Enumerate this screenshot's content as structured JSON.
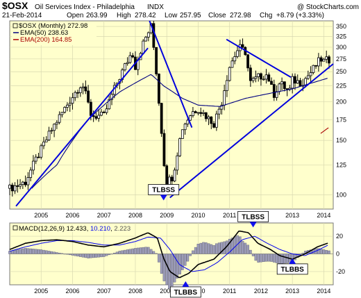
{
  "header": {
    "symbol": "$OSX",
    "name": "Oil Services Index - Philadelphia",
    "exchange": "INDX",
    "watermark": "@ StockCharts.com",
    "date": "21-Feb-2014",
    "open_label": "Open",
    "open": "263.99",
    "high_label": "High",
    "high": "278.42",
    "low_label": "Low",
    "low": "257.95",
    "close_label": "Close",
    "close": "272.98",
    "chg_label": "Chg",
    "chg": "+8.79 (+3.33%)"
  },
  "legend": {
    "price": "$OSX (Monthly) 272.98",
    "ema50": "EMA(50) 238.63",
    "ema200": "EMA(200) 164.85"
  },
  "macd_legend": {
    "label": "MACD(12,26,9) 12.433, 10.210, 2.223",
    "parts": [
      "MACD(12,26,9) 12.433",
      ", ",
      "10.210",
      ", ",
      "2.223"
    ]
  },
  "annotations": [
    {
      "text": "TLBSS",
      "x": 2008.9,
      "y": 96,
      "pointer": "down",
      "panel": "price"
    },
    {
      "text": "TLBSS",
      "x": 2011.75,
      "y": 30,
      "pointer": "down",
      "panel": "macd"
    },
    {
      "text": "TLBBS",
      "x": 2009.6,
      "y": -31,
      "pointer": "up",
      "panel": "macd"
    },
    {
      "text": "TLBBS",
      "x": 2013.0,
      "y": -5,
      "pointer": "up",
      "panel": "macd"
    }
  ],
  "colors": {
    "background": "#ffffcc",
    "grid": "#d8d8b0",
    "trendline": "#0000dd",
    "ema50": "#000080",
    "ema200": "#aa0000",
    "macd": "#000000",
    "signal": "#0000ee",
    "histogram": "#9c9cb8"
  },
  "chart_data": [
    {
      "type": "candlestick",
      "title": "$OSX Oil Services Index - Philadelphia INDX",
      "interval": "monthly",
      "scale": "log",
      "x_ticks": [
        2005,
        2006,
        2007,
        2008,
        2009,
        2010,
        2011,
        2012,
        2013,
        2014
      ],
      "x_tick_labels": [
        "2005",
        "2006",
        "2007",
        "2008",
        "2009",
        "2010",
        "2011",
        "2012",
        "2013",
        "2014"
      ],
      "y_ticks": [
        100,
        125,
        150,
        175,
        200,
        225,
        250,
        275,
        300,
        325,
        350
      ],
      "y_tick_labels": [
        "100",
        "125",
        "150",
        "175",
        "200",
        "225",
        "250",
        "275",
        "300",
        "325",
        "350"
      ],
      "ylim": [
        90,
        365
      ],
      "xlim": [
        2004.0,
        2014.3
      ],
      "grid": true,
      "legend": "top-left",
      "anchors_close": [
        [
          2004.0,
          105
        ],
        [
          2004.5,
          110
        ],
        [
          2005.0,
          140
        ],
        [
          2005.75,
          190
        ],
        [
          2006.3,
          230
        ],
        [
          2006.6,
          180
        ],
        [
          2007.0,
          180
        ],
        [
          2007.5,
          240
        ],
        [
          2007.9,
          290
        ],
        [
          2008.0,
          260
        ],
        [
          2008.2,
          300
        ],
        [
          2008.5,
          350
        ],
        [
          2008.6,
          290
        ],
        [
          2008.75,
          200
        ],
        [
          2008.9,
          130
        ],
        [
          2009.0,
          110
        ],
        [
          2009.2,
          115
        ],
        [
          2009.5,
          165
        ],
        [
          2009.8,
          185
        ],
        [
          2010.0,
          190
        ],
        [
          2010.5,
          170
        ],
        [
          2010.75,
          200
        ],
        [
          2011.0,
          260
        ],
        [
          2011.3,
          300
        ],
        [
          2011.5,
          290
        ],
        [
          2011.65,
          230
        ],
        [
          2011.9,
          240
        ],
        [
          2012.2,
          245
        ],
        [
          2012.4,
          210
        ],
        [
          2012.6,
          230
        ],
        [
          2012.9,
          215
        ],
        [
          2013.0,
          235
        ],
        [
          2013.3,
          230
        ],
        [
          2013.6,
          250
        ],
        [
          2013.9,
          275
        ],
        [
          2014.0,
          270
        ],
        [
          2014.15,
          273
        ]
      ],
      "ema50_anchors": [
        [
          2004.7,
          105
        ],
        [
          2005.5,
          125
        ],
        [
          2006.5,
          175
        ],
        [
          2007.5,
          215
        ],
        [
          2008.5,
          245
        ],
        [
          2008.9,
          225
        ],
        [
          2009.5,
          205
        ],
        [
          2010.0,
          195
        ],
        [
          2010.7,
          193
        ],
        [
          2011.5,
          205
        ],
        [
          2012.0,
          210
        ],
        [
          2013.0,
          220
        ],
        [
          2013.5,
          228
        ],
        [
          2014.15,
          238.63
        ]
      ],
      "ema200_anchors": [
        [
          2013.9,
          158
        ],
        [
          2014.15,
          164.85
        ]
      ],
      "trendlines": [
        [
          [
            2004.2,
            92
          ],
          [
            2008.4,
            298
          ]
        ],
        [
          [
            2008.45,
            365
          ],
          [
            2009.8,
            165
          ]
        ],
        [
          [
            2009.1,
            98
          ],
          [
            2014.3,
            265
          ]
        ],
        [
          [
            2010.9,
            318
          ],
          [
            2012.95,
            240
          ]
        ]
      ]
    },
    {
      "type": "macd",
      "title": "MACD(12,26,9)",
      "values": {
        "macd": 12.433,
        "signal": 10.21,
        "histogram": 2.223
      },
      "y_ticks": [
        -20,
        0,
        20
      ],
      "y_tick_labels": [
        "-20",
        "0",
        "20"
      ],
      "ylim": [
        -35,
        35
      ],
      "xlim": [
        2004.0,
        2014.3
      ],
      "x_ticks": [
        2005,
        2006,
        2007,
        2008,
        2009,
        2010,
        2011,
        2012,
        2013,
        2014
      ],
      "x_tick_labels": [
        "2005",
        "2006",
        "2007",
        "2008",
        "2009",
        "2010",
        "2011",
        "2012",
        "2013",
        "2014"
      ],
      "macd_anchors": [
        [
          2004.0,
          5
        ],
        [
          2004.5,
          12
        ],
        [
          2005.0,
          15
        ],
        [
          2005.5,
          16
        ],
        [
          2006.0,
          14
        ],
        [
          2006.5,
          10
        ],
        [
          2007.0,
          8
        ],
        [
          2007.5,
          12
        ],
        [
          2008.0,
          18
        ],
        [
          2008.4,
          24
        ],
        [
          2008.7,
          18
        ],
        [
          2008.9,
          -5
        ],
        [
          2009.1,
          -20
        ],
        [
          2009.4,
          -27
        ],
        [
          2009.7,
          -22
        ],
        [
          2010.0,
          -12
        ],
        [
          2010.5,
          -6
        ],
        [
          2010.9,
          8
        ],
        [
          2011.3,
          26
        ],
        [
          2011.6,
          24
        ],
        [
          2011.9,
          12
        ],
        [
          2012.3,
          5
        ],
        [
          2012.6,
          -2
        ],
        [
          2013.0,
          -6
        ],
        [
          2013.4,
          0
        ],
        [
          2013.8,
          8
        ],
        [
          2014.15,
          12.433
        ]
      ],
      "signal_anchors": [
        [
          2004.0,
          3
        ],
        [
          2004.5,
          8
        ],
        [
          2005.0,
          12
        ],
        [
          2005.5,
          15
        ],
        [
          2006.0,
          15
        ],
        [
          2006.5,
          13
        ],
        [
          2007.0,
          10
        ],
        [
          2007.5,
          10
        ],
        [
          2008.0,
          14
        ],
        [
          2008.4,
          19
        ],
        [
          2008.8,
          18
        ],
        [
          2009.1,
          5
        ],
        [
          2009.4,
          -12
        ],
        [
          2009.8,
          -20
        ],
        [
          2010.2,
          -18
        ],
        [
          2010.6,
          -10
        ],
        [
          2011.0,
          2
        ],
        [
          2011.4,
          16
        ],
        [
          2011.8,
          20
        ],
        [
          2012.2,
          12
        ],
        [
          2012.6,
          5
        ],
        [
          2013.0,
          0
        ],
        [
          2013.4,
          -2
        ],
        [
          2013.8,
          4
        ],
        [
          2014.15,
          10.21
        ]
      ]
    }
  ]
}
